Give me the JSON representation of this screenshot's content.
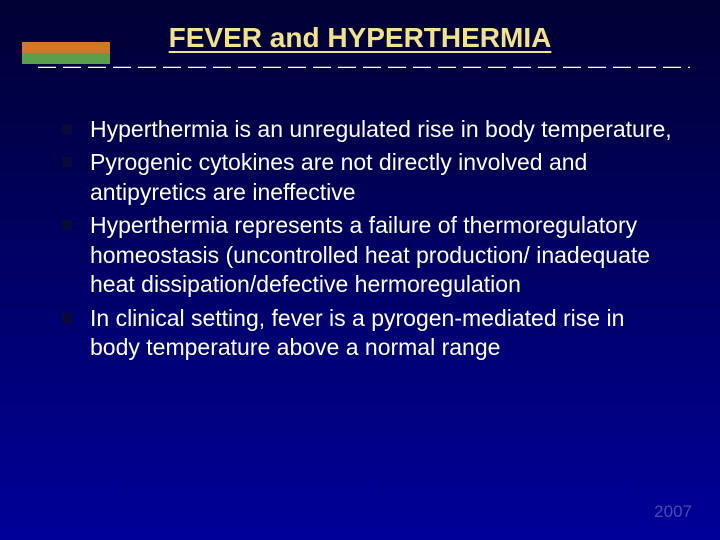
{
  "colors": {
    "title_text": "#f2e28a",
    "dash_line": "#ffffff",
    "accent_top": "#d07828",
    "accent_bottom": "#5aa04a",
    "bullet_marker": "#0a0a3a",
    "body_text": "#ffffff",
    "footer_text": "#4a4ab0"
  },
  "title": "FEVER and HYPERTHERMIA",
  "dash_line": "— — — — — — — — — — — — — — — — — — — — — — — — — — — — — — — — — — — — —",
  "bullets": [
    "Hyperthermia is an unregulated rise in body temperature,",
    "Pyrogenic cytokines are not directly involved and antipyretics are ineffective",
    "Hyperthermia represents a failure of thermoregulatory homeostasis (uncontrolled heat production/ inadequate heat dissipation/defective hermoregulation",
    "In clinical setting, fever is a pyrogen-mediated rise in body temperature above a normal range"
  ],
  "footer": "2007",
  "typography": {
    "title_fontsize": 28,
    "body_fontsize": 23,
    "footer_fontsize": 17
  }
}
